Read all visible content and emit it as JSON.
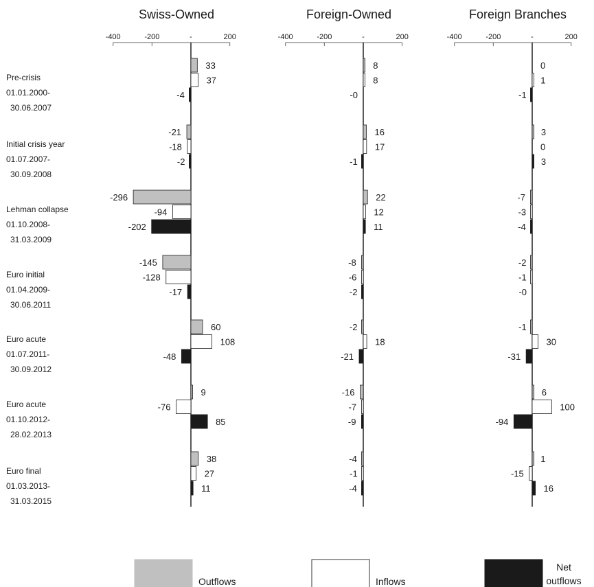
{
  "chart_data": {
    "type": "bar",
    "orientation": "horizontal",
    "panels": [
      "Swiss-Owned",
      "Foreign-Owned",
      "Foreign Branches"
    ],
    "xlim": [
      -400,
      200
    ],
    "xticks": [
      -400,
      -200,
      0,
      200
    ],
    "xtick_labels": [
      "-400",
      "-200",
      "-",
      "200"
    ],
    "periods": [
      {
        "lines": [
          "Pre-crisis",
          "01.01.2000-",
          "30.06.2007"
        ]
      },
      {
        "lines": [
          "Initial crisis year",
          "01.07.2007-",
          "30.09.2008"
        ]
      },
      {
        "lines": [
          "Lehman collapse",
          "01.10.2008-",
          "31.03.2009"
        ]
      },
      {
        "lines": [
          "Euro initial",
          "01.04.2009-",
          "30.06.2011"
        ]
      },
      {
        "lines": [
          "Euro acute",
          "01.07.2011-",
          "30.09.2012"
        ]
      },
      {
        "lines": [
          "Euro acute",
          "01.10.2012-",
          "28.02.2013"
        ]
      },
      {
        "lines": [
          "Euro final",
          "01.03.2013-",
          "31.03.2015"
        ]
      }
    ],
    "series": [
      {
        "name": "Outflows",
        "color": "#c0c0c0",
        "values": [
          [
            33,
            8,
            0
          ],
          [
            -21,
            16,
            3
          ],
          [
            -296,
            22,
            -7
          ],
          [
            -145,
            -8,
            -2
          ],
          [
            60,
            -2,
            -1
          ],
          [
            9,
            -16,
            6
          ],
          [
            38,
            -4,
            1
          ]
        ],
        "labels": [
          [
            "33",
            "8",
            "0"
          ],
          [
            "-21",
            "16",
            "3"
          ],
          [
            "-296",
            "22",
            "-7"
          ],
          [
            "-145",
            "-8",
            "-2"
          ],
          [
            "60",
            "-2",
            "-1"
          ],
          [
            "9",
            "-16",
            "6"
          ],
          [
            "38",
            "-4",
            "1"
          ]
        ]
      },
      {
        "name": "Inflows",
        "color": "#ffffff",
        "values": [
          [
            37,
            8,
            1
          ],
          [
            -18,
            17,
            0
          ],
          [
            -94,
            12,
            -3
          ],
          [
            -128,
            -6,
            -1
          ],
          [
            108,
            18,
            30
          ],
          [
            -76,
            -7,
            100
          ],
          [
            27,
            -1,
            -15
          ]
        ],
        "labels": [
          [
            "37",
            "8",
            "1"
          ],
          [
            "-18",
            "17",
            "0"
          ],
          [
            "-94",
            "12",
            "-3"
          ],
          [
            "-128",
            "-6",
            "-1"
          ],
          [
            "108",
            "18",
            "30"
          ],
          [
            "-76",
            "-7",
            "100"
          ],
          [
            "27",
            "-1",
            "-15"
          ]
        ]
      },
      {
        "name": "Net outflows",
        "color": "#1a1a1a",
        "values": [
          [
            -4,
            0,
            -1
          ],
          [
            -2,
            -1,
            3
          ],
          [
            -202,
            11,
            -4
          ],
          [
            -17,
            -2,
            0
          ],
          [
            -48,
            -21,
            -31
          ],
          [
            85,
            -9,
            -94
          ],
          [
            11,
            -4,
            16
          ]
        ],
        "labels": [
          [
            "-4",
            "-0",
            "-1"
          ],
          [
            "-2",
            "-1",
            "3"
          ],
          [
            "-202",
            "11",
            "-4"
          ],
          [
            "-17",
            "-2",
            "-0"
          ],
          [
            "-48",
            "-21",
            "-31"
          ],
          [
            "85",
            "-9",
            "-94"
          ],
          [
            "11",
            "-4",
            "16"
          ]
        ]
      }
    ],
    "legend": {
      "position": "bottom",
      "items": [
        {
          "lines": [
            "Outflows"
          ]
        },
        {
          "lines": [
            "Inflows"
          ]
        },
        {
          "lines": [
            "Net",
            "outflows"
          ]
        }
      ]
    },
    "grid": false
  }
}
